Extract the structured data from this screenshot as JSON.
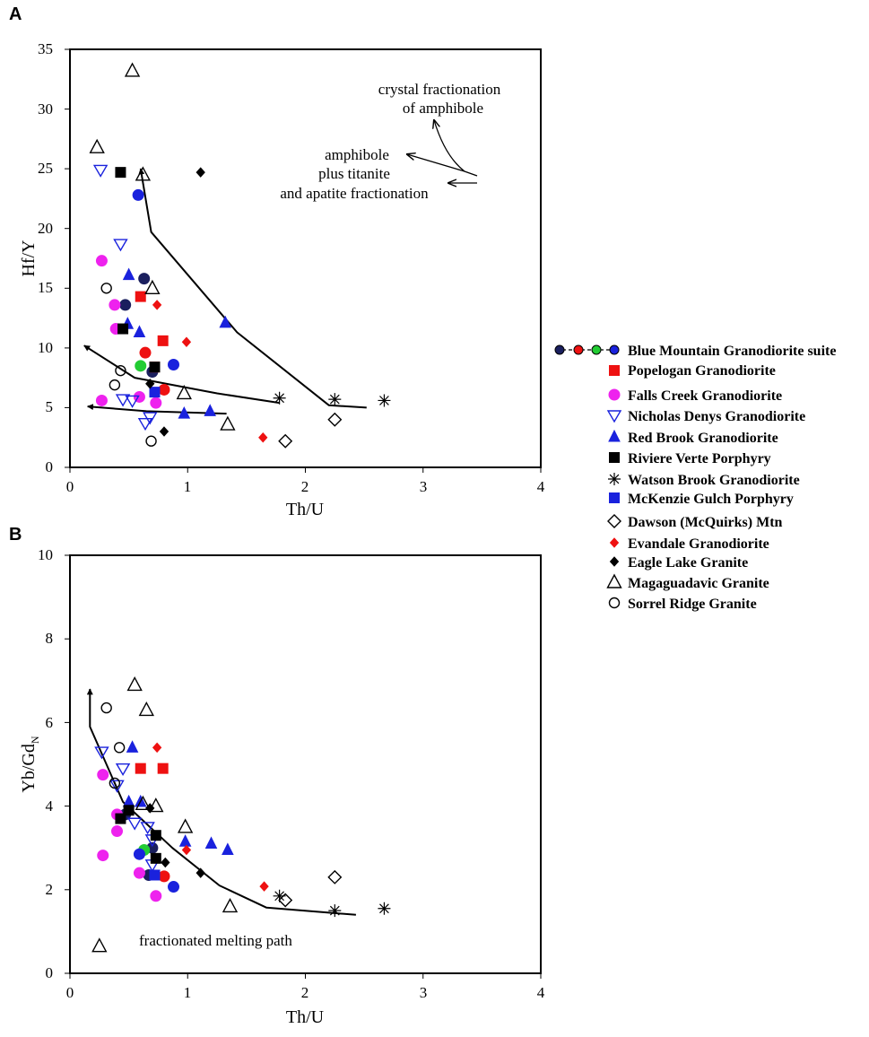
{
  "colors": {
    "black": "#000000",
    "red": "#ee1111",
    "blue": "#1a22dd",
    "navy": "#1a1f5e",
    "magenta": "#ee22ee",
    "green": "#22cc33"
  },
  "chart_data": [
    {
      "type": "scatter",
      "panel_letter": "A",
      "xlabel": "Th/U",
      "ylabel": "Hf/Y",
      "xlim": [
        0,
        4
      ],
      "ylim": [
        0,
        35
      ],
      "xticks": [
        "0",
        "1",
        "2",
        "3",
        "4"
      ],
      "yticks": [
        "0",
        "5",
        "10",
        "15",
        "20",
        "25",
        "30",
        "35"
      ],
      "annotations": {
        "crystal_line1": "crystal fractionation",
        "crystal_line2": "of amphibole",
        "amph_line1": "amphibole",
        "amph_line2": "plus titanite",
        "amph_line3": "and apatite fractionation"
      },
      "curves": [
        {
          "name": "fractionation-curve-main",
          "arrow": true,
          "points": [
            [
              2.52,
              5.0
            ],
            [
              2.2,
              5.2
            ],
            [
              1.42,
              11.3
            ],
            [
              0.69,
              19.7
            ],
            [
              0.6,
              25.0
            ]
          ]
        },
        {
          "name": "fractionation-curve-mid",
          "arrow": true,
          "points": [
            [
              1.78,
              5.4
            ],
            [
              1.25,
              6.2
            ],
            [
              0.55,
              7.5
            ],
            [
              0.12,
              10.2
            ]
          ]
        },
        {
          "name": "fractionation-curve-low",
          "arrow": true,
          "points": [
            [
              1.33,
              4.5
            ],
            [
              0.65,
              4.7
            ],
            [
              0.15,
              5.1
            ]
          ]
        }
      ],
      "series": [
        {
          "name": "Blue Mountain Granodiorite suite",
          "color": "#1a1f5e",
          "marker": "circle",
          "points": [
            [
              0.47,
              13.6
            ],
            [
              0.63,
              15.8
            ],
            [
              0.7,
              8.0
            ]
          ]
        },
        {
          "name": "Blue Mountain Granodiorite suite",
          "color": "#ee1111",
          "marker": "circle",
          "points": [
            [
              0.64,
              9.6
            ],
            [
              0.8,
              6.5
            ]
          ]
        },
        {
          "name": "Blue Mountain Granodiorite suite",
          "color": "#22cc33",
          "marker": "circle",
          "points": [
            [
              0.6,
              8.5
            ]
          ]
        },
        {
          "name": "Blue Mountain Granodiorite suite",
          "color": "#1a22dd",
          "marker": "circle",
          "points": [
            [
              0.58,
              22.8
            ],
            [
              0.88,
              8.6
            ]
          ]
        },
        {
          "name": "Popelogan Granodiorite",
          "color": "#ee1111",
          "marker": "square",
          "points": [
            [
              0.6,
              14.3
            ],
            [
              0.79,
              10.6
            ],
            [
              0.72,
              8.4
            ]
          ]
        },
        {
          "name": "Falls Creek Granodiorite",
          "color": "#ee22ee",
          "marker": "circle",
          "points": [
            [
              0.27,
              17.3
            ],
            [
              0.38,
              13.6
            ],
            [
              0.39,
              11.6
            ],
            [
              0.59,
              5.9
            ],
            [
              0.27,
              5.6
            ],
            [
              0.73,
              5.4
            ]
          ]
        },
        {
          "name": "Nicholas Denys Granodiorite",
          "color": "#1a22dd",
          "marker": "triangle-down",
          "points": [
            [
              0.26,
              24.9
            ],
            [
              0.43,
              18.7
            ],
            [
              0.45,
              5.7
            ],
            [
              0.53,
              5.6
            ],
            [
              0.64,
              3.7
            ],
            [
              0.68,
              4.2
            ]
          ]
        },
        {
          "name": "Red Brook Granodiorite",
          "color": "#1a22dd",
          "marker": "triangle",
          "points": [
            [
              0.5,
              16.1
            ],
            [
              0.49,
              12.0
            ],
            [
              0.59,
              11.3
            ],
            [
              1.32,
              12.1
            ],
            [
              0.97,
              4.5
            ],
            [
              1.19,
              4.7
            ]
          ]
        },
        {
          "name": "Riviere Verte Porphyry",
          "color": "#000000",
          "marker": "square",
          "points": [
            [
              0.43,
              24.7
            ],
            [
              0.45,
              11.6
            ],
            [
              0.72,
              8.4
            ]
          ]
        },
        {
          "name": "Watson Brook Granodiorite",
          "color": "#000000",
          "marker": "star",
          "points": [
            [
              1.78,
              5.8
            ],
            [
              2.25,
              5.7
            ],
            [
              2.67,
              5.6
            ]
          ]
        },
        {
          "name": "McKenzie Gulch Porphyry",
          "color": "#1a22dd",
          "marker": "square",
          "points": [
            [
              0.72,
              6.3
            ]
          ]
        },
        {
          "name": "Dawson (McQuirks) Mtn",
          "color": "#000000",
          "marker": "diamond-open",
          "points": [
            [
              1.83,
              2.2
            ],
            [
              2.25,
              4.0
            ]
          ]
        },
        {
          "name": "Evandale Granodiorite",
          "color": "#ee1111",
          "marker": "diamond",
          "points": [
            [
              0.74,
              13.6
            ],
            [
              0.99,
              10.5
            ],
            [
              1.64,
              2.5
            ]
          ]
        },
        {
          "name": "Eagle Lake Granite",
          "color": "#000000",
          "marker": "diamond",
          "points": [
            [
              1.11,
              24.7
            ],
            [
              0.68,
              7.0
            ],
            [
              0.8,
              3.0
            ]
          ]
        },
        {
          "name": "Magaguadavic Granite",
          "color": "#000000",
          "marker": "triangle-open",
          "points": [
            [
              0.53,
              33.2
            ],
            [
              0.23,
              26.8
            ],
            [
              0.62,
              24.5
            ],
            [
              0.7,
              15.0
            ],
            [
              0.97,
              6.2
            ],
            [
              1.34,
              3.6
            ]
          ]
        },
        {
          "name": "Sorrel Ridge Granite",
          "color": "#000000",
          "marker": "circle-open",
          "points": [
            [
              0.31,
              15.0
            ],
            [
              0.43,
              8.1
            ],
            [
              0.38,
              6.9
            ],
            [
              0.69,
              2.2
            ]
          ]
        }
      ]
    },
    {
      "type": "scatter",
      "panel_letter": "B",
      "xlabel": "Th/U",
      "ylabel": "Yb/Gd",
      "ylabel_subscript": "N",
      "xlim": [
        0,
        4
      ],
      "ylim": [
        0,
        10
      ],
      "xticks": [
        "0",
        "1",
        "2",
        "3",
        "4"
      ],
      "yticks": [
        "0",
        "2",
        "4",
        "6",
        "8",
        "10"
      ],
      "annotations": {
        "melting_path": "fractionated melting path"
      },
      "curves": [
        {
          "name": "fractionated-melting-path-curve",
          "arrow": true,
          "points": [
            [
              2.43,
              1.4
            ],
            [
              1.67,
              1.57
            ],
            [
              1.27,
              2.1
            ],
            [
              0.87,
              3.0
            ],
            [
              0.45,
              4.1
            ],
            [
              0.17,
              5.9
            ],
            [
              0.17,
              6.8
            ]
          ]
        }
      ],
      "series": [
        {
          "name": "Blue Mountain Granodiorite suite",
          "color": "#1a1f5e",
          "marker": "circle",
          "points": [
            [
              0.47,
              3.8
            ],
            [
              0.7,
              3.0
            ],
            [
              0.67,
              2.35
            ]
          ]
        },
        {
          "name": "Blue Mountain Granodiorite suite",
          "color": "#ee1111",
          "marker": "circle",
          "points": [
            [
              0.8,
              2.32
            ]
          ]
        },
        {
          "name": "Blue Mountain Granodiorite suite",
          "color": "#22cc33",
          "marker": "circle",
          "points": [
            [
              0.63,
              2.95
            ]
          ]
        },
        {
          "name": "Blue Mountain Granodiorite suite",
          "color": "#1a22dd",
          "marker": "circle",
          "points": [
            [
              0.59,
              2.85
            ],
            [
              0.88,
              2.07
            ]
          ]
        },
        {
          "name": "Popelogan Granodiorite",
          "color": "#ee1111",
          "marker": "square",
          "points": [
            [
              0.6,
              4.9
            ],
            [
              0.79,
              4.9
            ]
          ]
        },
        {
          "name": "Falls Creek Granodiorite",
          "color": "#ee22ee",
          "marker": "circle",
          "points": [
            [
              0.28,
              4.75
            ],
            [
              0.4,
              3.8
            ],
            [
              0.4,
              3.4
            ],
            [
              0.28,
              2.82
            ],
            [
              0.59,
              2.4
            ],
            [
              0.73,
              1.85
            ]
          ]
        },
        {
          "name": "Nicholas Denys Granodiorite",
          "color": "#1a22dd",
          "marker": "triangle-down",
          "points": [
            [
              0.27,
              5.3
            ],
            [
              0.45,
              4.9
            ],
            [
              0.4,
              4.5
            ],
            [
              0.55,
              3.6
            ],
            [
              0.66,
              3.5
            ],
            [
              0.7,
              3.2
            ],
            [
              0.7,
              2.6
            ]
          ]
        },
        {
          "name": "Red Brook Granodiorite",
          "color": "#1a22dd",
          "marker": "triangle",
          "points": [
            [
              0.53,
              5.4
            ],
            [
              0.5,
              4.1
            ],
            [
              0.6,
              4.1
            ],
            [
              0.98,
              3.15
            ],
            [
              1.2,
              3.1
            ],
            [
              1.34,
              2.95
            ]
          ]
        },
        {
          "name": "Riviere Verte Porphyry",
          "color": "#000000",
          "marker": "square",
          "points": [
            [
              0.43,
              3.7
            ],
            [
              0.5,
              3.9
            ],
            [
              0.73,
              3.3
            ],
            [
              0.73,
              2.75
            ]
          ]
        },
        {
          "name": "Watson Brook Granodiorite",
          "color": "#000000",
          "marker": "star",
          "points": [
            [
              1.78,
              1.85
            ],
            [
              2.25,
              1.5
            ],
            [
              2.67,
              1.55
            ]
          ]
        },
        {
          "name": "McKenzie Gulch Porphyry",
          "color": "#1a22dd",
          "marker": "square",
          "points": [
            [
              0.72,
              2.35
            ]
          ]
        },
        {
          "name": "Dawson (McQuirks) Mtn",
          "color": "#000000",
          "marker": "diamond-open",
          "points": [
            [
              1.83,
              1.75
            ],
            [
              2.25,
              2.3
            ]
          ]
        },
        {
          "name": "Evandale Granodiorite",
          "color": "#ee1111",
          "marker": "diamond",
          "points": [
            [
              0.74,
              5.4
            ],
            [
              0.99,
              2.95
            ],
            [
              1.65,
              2.08
            ]
          ]
        },
        {
          "name": "Eagle Lake Granite",
          "color": "#000000",
          "marker": "diamond",
          "points": [
            [
              0.68,
              3.95
            ],
            [
              0.81,
              2.65
            ],
            [
              1.11,
              2.4
            ]
          ]
        },
        {
          "name": "Magaguadavic Granite",
          "color": "#000000",
          "marker": "triangle-open",
          "points": [
            [
              0.55,
              6.9
            ],
            [
              0.65,
              6.3
            ],
            [
              0.62,
              4.05
            ],
            [
              0.73,
              4.0
            ],
            [
              0.98,
              3.5
            ],
            [
              1.36,
              1.6
            ],
            [
              0.25,
              0.65
            ]
          ]
        },
        {
          "name": "Sorrel Ridge Granite",
          "color": "#000000",
          "marker": "circle-open",
          "points": [
            [
              0.31,
              6.35
            ],
            [
              0.42,
              5.4
            ],
            [
              0.38,
              4.55
            ]
          ]
        }
      ]
    }
  ],
  "legend": [
    {
      "label": "Blue Mountain Granodiorite suite",
      "marker": "suite-chain"
    },
    {
      "label": "Popelogan Granodiorite",
      "marker": "square",
      "color": "#ee1111"
    },
    {
      "label": "Falls Creek Granodiorite",
      "marker": "circle",
      "color": "#ee22ee"
    },
    {
      "label": "Nicholas Denys Granodiorite",
      "marker": "triangle-down",
      "color": "#1a22dd"
    },
    {
      "label": "Red Brook Granodiorite",
      "marker": "triangle",
      "color": "#1a22dd"
    },
    {
      "label": "Riviere Verte Porphyry",
      "marker": "square",
      "color": "#000000"
    },
    {
      "label": "Watson Brook Granodiorite",
      "marker": "star",
      "color": "#000000"
    },
    {
      "label": "McKenzie Gulch Porphyry",
      "marker": "square",
      "color": "#1a22dd"
    },
    {
      "label": "Dawson (McQuirks) Mtn",
      "marker": "diamond-open",
      "color": "#000000"
    },
    {
      "label": "Evandale Granodiorite",
      "marker": "diamond",
      "color": "#ee1111"
    },
    {
      "label": "Eagle Lake Granite",
      "marker": "diamond",
      "color": "#000000"
    },
    {
      "label": "Magaguadavic Granite",
      "marker": "triangle-open",
      "color": "#000000"
    },
    {
      "label": "Sorrel Ridge Granite",
      "marker": "circle-open",
      "color": "#000000"
    }
  ],
  "legend_suite_colors": [
    "#1a1f5e",
    "#ee1111",
    "#22cc33",
    "#1a22dd"
  ]
}
